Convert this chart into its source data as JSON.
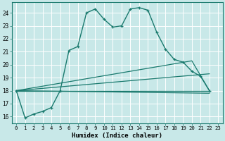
{
  "title": "",
  "xlabel": "Humidex (Indice chaleur)",
  "bg_color": "#c8e8e8",
  "grid_color": "#aed4d4",
  "line_color": "#1a7a6e",
  "xlim": [
    -0.5,
    23.5
  ],
  "ylim": [
    15.5,
    24.8
  ],
  "xticks": [
    0,
    1,
    2,
    3,
    4,
    5,
    6,
    7,
    8,
    9,
    10,
    11,
    12,
    13,
    14,
    15,
    16,
    17,
    18,
    19,
    20,
    21,
    22,
    23
  ],
  "yticks": [
    16,
    17,
    18,
    19,
    20,
    21,
    22,
    23,
    24
  ],
  "main_series": [
    [
      0,
      18.0
    ],
    [
      1,
      15.9
    ],
    [
      2,
      16.2
    ],
    [
      3,
      16.4
    ],
    [
      4,
      16.7
    ],
    [
      5,
      18.0
    ],
    [
      6,
      21.1
    ],
    [
      7,
      21.4
    ],
    [
      8,
      24.0
    ],
    [
      9,
      24.3
    ],
    [
      10,
      23.5
    ],
    [
      11,
      22.9
    ],
    [
      12,
      23.0
    ],
    [
      13,
      24.3
    ],
    [
      14,
      24.4
    ],
    [
      15,
      24.2
    ],
    [
      16,
      22.5
    ],
    [
      17,
      21.2
    ],
    [
      18,
      20.4
    ],
    [
      19,
      20.2
    ],
    [
      20,
      19.5
    ],
    [
      21,
      19.1
    ],
    [
      22,
      18.0
    ]
  ],
  "fan_line1": [
    [
      0,
      18.0
    ],
    [
      22,
      18.0
    ]
  ],
  "fan_line2": [
    [
      0,
      18.0
    ],
    [
      22,
      18.0
    ]
  ],
  "fan_line3": [
    [
      0,
      18.0
    ],
    [
      19,
      19.5
    ],
    [
      22,
      18.0
    ]
  ],
  "fan_line4": [
    [
      0,
      18.0
    ],
    [
      20,
      20.3
    ],
    [
      22,
      18.0
    ]
  ]
}
